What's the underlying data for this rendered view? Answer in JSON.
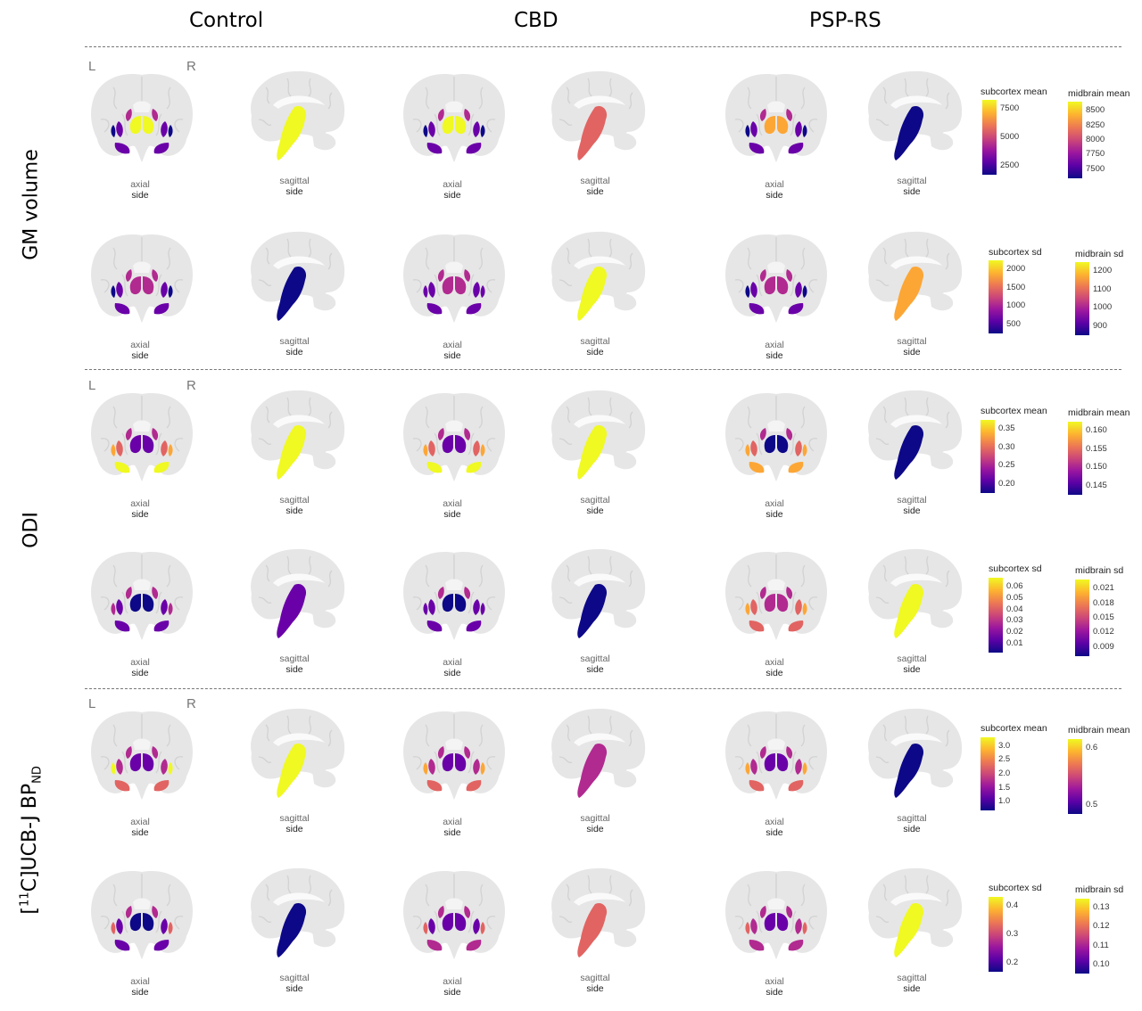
{
  "columns": [
    "Control",
    "CBD",
    "PSP-RS"
  ],
  "rows": [
    {
      "label_parts": [
        "GM volume"
      ]
    },
    {
      "label_parts": [
        "ODI"
      ]
    },
    {
      "label_parts": [
        "[",
        "11",
        "C]UCB-J BP",
        "ND"
      ]
    }
  ],
  "orientation": {
    "left": "L",
    "right": "R"
  },
  "captions": {
    "axial": {
      "line1": "axial",
      "line2": "side"
    },
    "sagittal": {
      "line1": "sagittal",
      "line2": "side"
    }
  },
  "colormap": "plasma",
  "colors": {
    "dark_blue": "#0d0887",
    "purple": "#6a00a8",
    "magenta": "#b12a90",
    "orange": "#e16462",
    "amber": "#fca636",
    "yellow": "#f0f921",
    "silhouette": "#e6e6e6"
  },
  "legends": [
    {
      "id": "gm-mean-sub",
      "title": "subcortex mean",
      "ticks": [
        "7500",
        "5000",
        "2500"
      ]
    },
    {
      "id": "gm-mean-mid",
      "title": "midbrain mean",
      "ticks": [
        "8500",
        "8250",
        "8000",
        "7750",
        "7500"
      ]
    },
    {
      "id": "gm-sd-sub",
      "title": "subcortex sd",
      "ticks": [
        "2000",
        "1500",
        "1000",
        "500"
      ]
    },
    {
      "id": "gm-sd-mid",
      "title": "midbrain sd",
      "ticks": [
        "1200",
        "1100",
        "1000",
        "900"
      ]
    },
    {
      "id": "odi-mean-sub",
      "title": "subcortex mean",
      "ticks": [
        "0.35",
        "0.30",
        "0.25",
        "0.20"
      ]
    },
    {
      "id": "odi-mean-mid",
      "title": "midbrain mean",
      "ticks": [
        "0.160",
        "0.155",
        "0.150",
        "0.145"
      ]
    },
    {
      "id": "odi-sd-sub",
      "title": "subcortex sd",
      "ticks": [
        "0.06",
        "0.05",
        "0.04",
        "0.03",
        "0.02",
        "0.01"
      ]
    },
    {
      "id": "odi-sd-mid",
      "title": "midbrain sd",
      "ticks": [
        "0.021",
        "0.018",
        "0.015",
        "0.012",
        "0.009"
      ]
    },
    {
      "id": "ucb-mean-sub",
      "title": "subcortex mean",
      "ticks": [
        "3.0",
        "2.5",
        "2.0",
        "1.5",
        "1.0"
      ]
    },
    {
      "id": "ucb-mean-mid",
      "title": "midbrain mean",
      "ticks": [
        "0.6",
        "0.5"
      ]
    },
    {
      "id": "ucb-sd-sub",
      "title": "subcortex sd",
      "ticks": [
        "0.4",
        "0.3",
        "0.2"
      ]
    },
    {
      "id": "ucb-sd-mid",
      "title": "midbrain sd",
      "ticks": [
        "0.13",
        "0.12",
        "0.11",
        "0.10"
      ]
    }
  ],
  "panels": [
    {
      "row": "GM volume mean",
      "group": "Control",
      "axial": {
        "thal": "yellow",
        "put": "purple",
        "caud": "magenta",
        "low": "purple",
        "lat": "dark_blue"
      },
      "sagittal": "yellow"
    },
    {
      "row": "GM volume mean",
      "group": "CBD",
      "axial": {
        "thal": "yellow",
        "put": "purple",
        "caud": "magenta",
        "low": "purple",
        "lat": "dark_blue"
      },
      "sagittal": "orange"
    },
    {
      "row": "GM volume mean",
      "group": "PSP-RS",
      "axial": {
        "thal": "amber",
        "put": "purple",
        "caud": "magenta",
        "low": "purple",
        "lat": "dark_blue"
      },
      "sagittal": "dark_blue"
    },
    {
      "row": "GM volume sd",
      "group": "Control",
      "axial": {
        "thal": "magenta",
        "put": "purple",
        "caud": "magenta",
        "low": "purple",
        "lat": "dark_blue"
      },
      "sagittal": "dark_blue"
    },
    {
      "row": "GM volume sd",
      "group": "CBD",
      "axial": {
        "thal": "magenta",
        "put": "purple",
        "caud": "magenta",
        "low": "purple",
        "lat": "purple"
      },
      "sagittal": "yellow"
    },
    {
      "row": "GM volume sd",
      "group": "PSP-RS",
      "axial": {
        "thal": "magenta",
        "put": "purple",
        "caud": "magenta",
        "low": "purple",
        "lat": "dark_blue"
      },
      "sagittal": "amber"
    },
    {
      "row": "ODI mean",
      "group": "Control",
      "axial": {
        "thal": "purple",
        "put": "orange",
        "caud": "magenta",
        "low": "yellow",
        "lat": "amber"
      },
      "sagittal": "yellow"
    },
    {
      "row": "ODI mean",
      "group": "CBD",
      "axial": {
        "thal": "purple",
        "put": "orange",
        "caud": "magenta",
        "low": "yellow",
        "lat": "amber"
      },
      "sagittal": "yellow"
    },
    {
      "row": "ODI mean",
      "group": "PSP-RS",
      "axial": {
        "thal": "dark_blue",
        "put": "orange",
        "caud": "magenta",
        "low": "amber",
        "lat": "amber"
      },
      "sagittal": "dark_blue"
    },
    {
      "row": "ODI sd",
      "group": "Control",
      "axial": {
        "thal": "dark_blue",
        "put": "purple",
        "caud": "magenta",
        "low": "purple",
        "lat": "magenta"
      },
      "sagittal": "purple"
    },
    {
      "row": "ODI sd",
      "group": "CBD",
      "axial": {
        "thal": "dark_blue",
        "put": "purple",
        "caud": "magenta",
        "low": "purple",
        "lat": "purple"
      },
      "sagittal": "dark_blue"
    },
    {
      "row": "ODI sd",
      "group": "PSP-RS",
      "axial": {
        "thal": "magenta",
        "put": "orange",
        "caud": "magenta",
        "low": "orange",
        "lat": "amber"
      },
      "sagittal": "yellow"
    },
    {
      "row": "UCB-J mean",
      "group": "Control",
      "axial": {
        "thal": "purple",
        "put": "magenta",
        "caud": "magenta",
        "low": "orange",
        "lat": "yellow"
      },
      "sagittal": "yellow"
    },
    {
      "row": "UCB-J mean",
      "group": "CBD",
      "axial": {
        "thal": "purple",
        "put": "magenta",
        "caud": "magenta",
        "low": "orange",
        "lat": "amber"
      },
      "sagittal": "magenta"
    },
    {
      "row": "UCB-J mean",
      "group": "PSP-RS",
      "axial": {
        "thal": "purple",
        "put": "magenta",
        "caud": "magenta",
        "low": "orange",
        "lat": "amber"
      },
      "sagittal": "dark_blue"
    },
    {
      "row": "UCB-J sd",
      "group": "Control",
      "axial": {
        "thal": "dark_blue",
        "put": "purple",
        "caud": "magenta",
        "low": "purple",
        "lat": "orange"
      },
      "sagittal": "dark_blue"
    },
    {
      "row": "UCB-J sd",
      "group": "CBD",
      "axial": {
        "thal": "purple",
        "put": "purple",
        "caud": "magenta",
        "low": "magenta",
        "lat": "orange"
      },
      "sagittal": "orange"
    },
    {
      "row": "UCB-J sd",
      "group": "PSP-RS",
      "axial": {
        "thal": "purple",
        "put": "magenta",
        "caud": "magenta",
        "low": "magenta",
        "lat": "orange"
      },
      "sagittal": "yellow"
    }
  ]
}
